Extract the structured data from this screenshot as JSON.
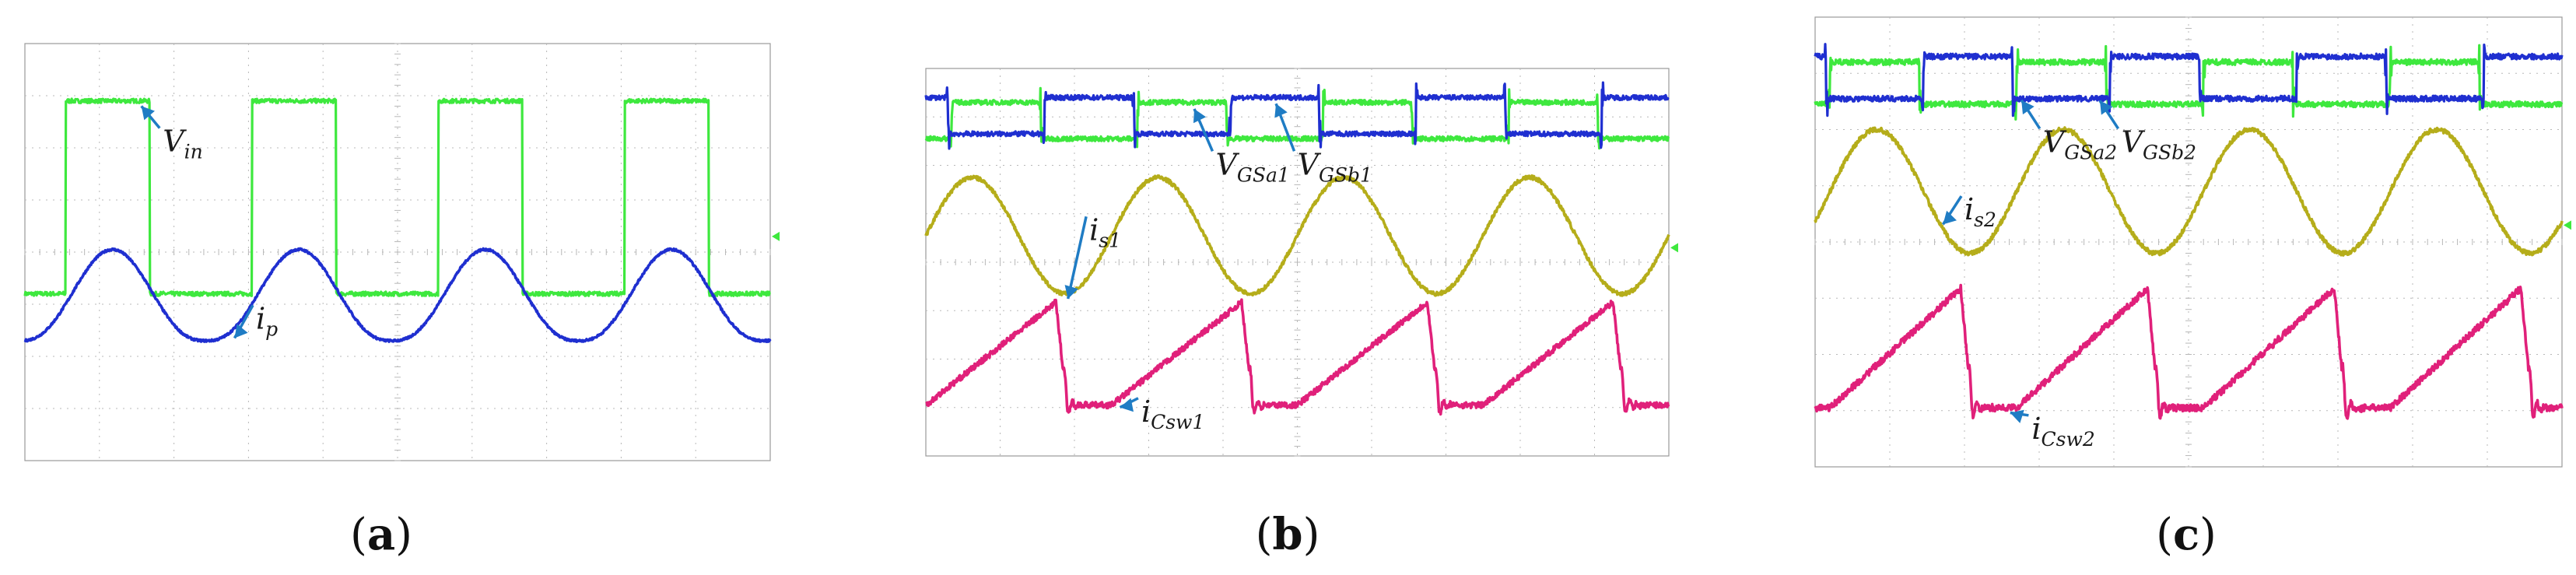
{
  "figure": {
    "panels": [
      {
        "letter": "a",
        "label_parts": [
          "(",
          "a",
          ")"
        ]
      },
      {
        "letter": "b",
        "label_parts": [
          "(",
          "b",
          ")"
        ]
      },
      {
        "letter": "c",
        "label_parts": [
          "(",
          "c",
          ")"
        ]
      }
    ]
  },
  "colors": {
    "green": "#3ee83e",
    "blue": "#1f2fd0",
    "olive": "#b5ad1a",
    "magenta": "#e0207a",
    "arrow": "#1f7cc4",
    "grid": "#b8b8b8",
    "frame": "#9a9a9a"
  },
  "chart_data": [
    {
      "type": "line",
      "title": "(a)",
      "xlabel": "",
      "ylabel": "",
      "x_range": [
        0,
        10
      ],
      "y_range": [
        -4,
        4
      ],
      "grid": "dotted 10x8 divisions",
      "series": [
        {
          "name": "V_in",
          "color": "#3ee83e",
          "kind": "square",
          "period": 2.5,
          "duty": 0.45,
          "phase": 0.55,
          "low": -0.8,
          "high": 2.9
        },
        {
          "name": "i_p",
          "color": "#1f2fd0",
          "kind": "resonant",
          "period": 2.5,
          "phase": 0.3,
          "low": -1.7,
          "high": 0.05
        }
      ],
      "annotations": [
        {
          "base": "V",
          "sub": "in",
          "series": "V_in",
          "at": [
            1.85,
            2.2
          ]
        },
        {
          "base": "i",
          "sub": "p",
          "series": "i_p",
          "at": [
            3.1,
            -1.2
          ]
        }
      ]
    },
    {
      "type": "line",
      "title": "(b)",
      "xlabel": "",
      "ylabel": "",
      "x_range": [
        0,
        10
      ],
      "y_range": [
        -4,
        4
      ],
      "grid": "dotted 10x8 divisions",
      "series": [
        {
          "name": "V_GSa1",
          "color": "#3ee83e",
          "kind": "gate",
          "period": 2.5,
          "duty": 0.48,
          "phase": 0.35,
          "low": 2.55,
          "high": 3.3
        },
        {
          "name": "V_GSb1",
          "color": "#1f2fd0",
          "kind": "gate",
          "period": 2.5,
          "duty": 0.48,
          "phase": 1.6,
          "low": 2.65,
          "high": 3.4
        },
        {
          "name": "i_s1",
          "color": "#b5ad1a",
          "kind": "sine",
          "period": 2.5,
          "phase": 0.0,
          "low": -0.65,
          "high": 1.75
        },
        {
          "name": "i_Csw1",
          "color": "#e0207a",
          "kind": "sawtooth",
          "period": 2.5,
          "phase": 0.0,
          "low": -2.95,
          "high": -0.45
        }
      ],
      "annotations": [
        {
          "base": "V",
          "sub": "GSa1",
          "series": "V_GSa1",
          "at": [
            3.9,
            2.1
          ]
        },
        {
          "base": "V",
          "sub": "GSb1",
          "series": "V_GSb1",
          "at": [
            5.0,
            2.1
          ]
        },
        {
          "base": "i",
          "sub": "s1",
          "series": "i_s1",
          "at": [
            2.2,
            0.75
          ]
        },
        {
          "base": "i",
          "sub": "Csw1",
          "series": "i_Csw1",
          "at": [
            2.9,
            -3.0
          ]
        }
      ]
    },
    {
      "type": "line",
      "title": "(c)",
      "xlabel": "",
      "ylabel": "",
      "x_range": [
        0,
        10
      ],
      "y_range": [
        -4,
        4
      ],
      "grid": "dotted 10x8 divisions",
      "series": [
        {
          "name": "V_GSa2",
          "color": "#3ee83e",
          "kind": "gate",
          "period": 2.5,
          "duty": 0.48,
          "phase": 0.2,
          "low": 2.45,
          "high": 3.2
        },
        {
          "name": "V_GSb2",
          "color": "#1f2fd0",
          "kind": "gate",
          "period": 2.5,
          "duty": 0.48,
          "phase": 1.45,
          "low": 2.55,
          "high": 3.3
        },
        {
          "name": "i_s2",
          "color": "#b5ad1a",
          "kind": "sine",
          "period": 2.5,
          "phase": 0.2,
          "low": -0.2,
          "high": 2.0
        },
        {
          "name": "i_Csw2",
          "color": "#e0207a",
          "kind": "sawtooth",
          "period": 2.5,
          "phase": 0.2,
          "low": -2.95,
          "high": -0.45
        }
      ],
      "annotations": [
        {
          "base": "V",
          "sub": "GSa2",
          "series": "V_GSa2",
          "at": [
            3.05,
            1.85
          ]
        },
        {
          "base": "V",
          "sub": "GSb2",
          "series": "V_GSb2",
          "at": [
            4.1,
            1.85
          ]
        },
        {
          "base": "i",
          "sub": "s2",
          "series": "i_s2",
          "at": [
            2.0,
            0.65
          ]
        },
        {
          "base": "i",
          "sub": "Csw2",
          "series": "i_Csw2",
          "at": [
            2.9,
            -3.25
          ]
        }
      ]
    }
  ]
}
